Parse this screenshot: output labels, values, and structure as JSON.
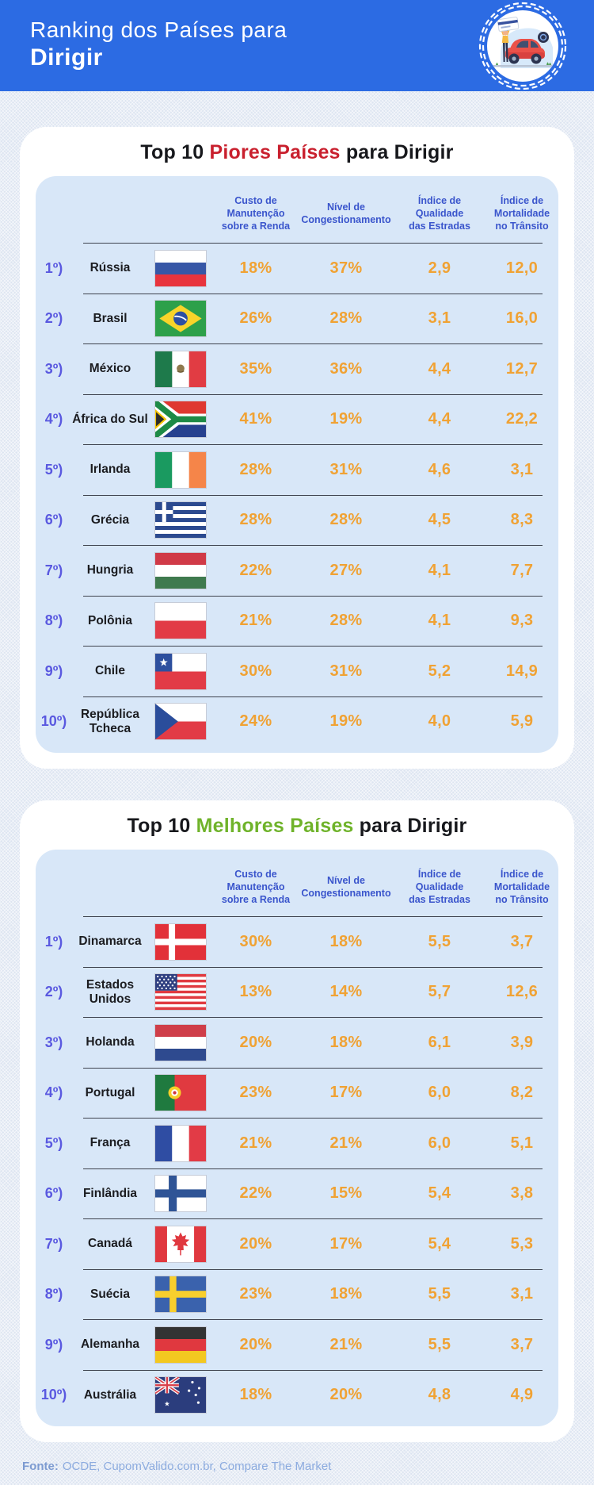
{
  "header": {
    "title_line1": "Ranking dos Países para",
    "title_line2": "Dirigir",
    "logo_icon": "car-credit-card-illustration"
  },
  "colors": {
    "header_bg": "#2c6be3",
    "panel_bg": "#d8e7f8",
    "worst_highlight": "#c9202e",
    "best_highlight": "#6fb32a",
    "value_orange": "#f0a234",
    "rank_blue": "#5a59e0",
    "column_header_blue": "#3a55cc"
  },
  "chart_data": [
    {
      "type": "table",
      "title": {
        "prefix": "Top 10 ",
        "highlight": "Piores Países",
        "suffix": " para Dirigir",
        "highlight_color": "#c9202e"
      },
      "columns": [
        [
          "Custo de",
          "Manutenção",
          "sobre a Renda"
        ],
        [
          "Nível de",
          "Congestionamento"
        ],
        [
          "Índice de",
          "Qualidade",
          "das Estradas"
        ],
        [
          "Índice de",
          "Mortalidade",
          "no Trânsito"
        ]
      ],
      "rows": [
        {
          "rank": "1º)",
          "country": "Rússia",
          "flag": "russia",
          "values": [
            "18%",
            "37%",
            "2,9",
            "12,0"
          ]
        },
        {
          "rank": "2º)",
          "country": "Brasil",
          "flag": "brazil",
          "values": [
            "26%",
            "28%",
            "3,1",
            "16,0"
          ]
        },
        {
          "rank": "3º)",
          "country": "México",
          "flag": "mexico",
          "values": [
            "35%",
            "36%",
            "4,4",
            "12,7"
          ]
        },
        {
          "rank": "4º)",
          "country": "África do Sul",
          "flag": "southafrica",
          "values": [
            "41%",
            "19%",
            "4,4",
            "22,2"
          ]
        },
        {
          "rank": "5º)",
          "country": "Irlanda",
          "flag": "ireland",
          "values": [
            "28%",
            "31%",
            "4,6",
            "3,1"
          ]
        },
        {
          "rank": "6º)",
          "country": "Grécia",
          "flag": "greece",
          "values": [
            "28%",
            "28%",
            "4,5",
            "8,3"
          ]
        },
        {
          "rank": "7º)",
          "country": "Hungria",
          "flag": "hungary",
          "values": [
            "22%",
            "27%",
            "4,1",
            "7,7"
          ]
        },
        {
          "rank": "8º)",
          "country": "Polônia",
          "flag": "poland",
          "values": [
            "21%",
            "28%",
            "4,1",
            "9,3"
          ]
        },
        {
          "rank": "9º)",
          "country": "Chile",
          "flag": "chile",
          "values": [
            "30%",
            "31%",
            "5,2",
            "14,9"
          ]
        },
        {
          "rank": "10º)",
          "country": "República Tcheca",
          "flag": "czech",
          "values": [
            "24%",
            "19%",
            "4,0",
            "5,9"
          ]
        }
      ]
    },
    {
      "type": "table",
      "title": {
        "prefix": "Top 10 ",
        "highlight": "Melhores Países",
        "suffix": " para Dirigir",
        "highlight_color": "#6fb32a"
      },
      "columns": [
        [
          "Custo de",
          "Manutenção",
          "sobre a Renda"
        ],
        [
          "Nível de",
          "Congestionamento"
        ],
        [
          "Índice de",
          "Qualidade",
          "das Estradas"
        ],
        [
          "Índice de",
          "Mortalidade",
          "no Trânsito"
        ]
      ],
      "rows": [
        {
          "rank": "1º)",
          "country": "Dinamarca",
          "flag": "denmark",
          "values": [
            "30%",
            "18%",
            "5,5",
            "3,7"
          ]
        },
        {
          "rank": "2º)",
          "country": "Estados Unidos",
          "flag": "usa",
          "values": [
            "13%",
            "14%",
            "5,7",
            "12,6"
          ]
        },
        {
          "rank": "3º)",
          "country": "Holanda",
          "flag": "netherlands",
          "values": [
            "20%",
            "18%",
            "6,1",
            "3,9"
          ]
        },
        {
          "rank": "4º)",
          "country": "Portugal",
          "flag": "portugal",
          "values": [
            "23%",
            "17%",
            "6,0",
            "8,2"
          ]
        },
        {
          "rank": "5º)",
          "country": "França",
          "flag": "france",
          "values": [
            "21%",
            "21%",
            "6,0",
            "5,1"
          ]
        },
        {
          "rank": "6º)",
          "country": "Finlândia",
          "flag": "finland",
          "values": [
            "22%",
            "15%",
            "5,4",
            "3,8"
          ]
        },
        {
          "rank": "7º)",
          "country": "Canadá",
          "flag": "canada",
          "values": [
            "20%",
            "17%",
            "5,4",
            "5,3"
          ]
        },
        {
          "rank": "8º)",
          "country": "Suécia",
          "flag": "sweden",
          "values": [
            "23%",
            "18%",
            "5,5",
            "3,1"
          ]
        },
        {
          "rank": "9º)",
          "country": "Alemanha",
          "flag": "germany",
          "values": [
            "20%",
            "21%",
            "5,5",
            "3,7"
          ]
        },
        {
          "rank": "10º)",
          "country": "Austrália",
          "flag": "australia",
          "values": [
            "18%",
            "20%",
            "4,8",
            "4,9"
          ]
        }
      ]
    }
  ],
  "footer": {
    "label": "Fonte:",
    "sources": "OCDE, CupomValido.com.br, Compare The Market"
  }
}
